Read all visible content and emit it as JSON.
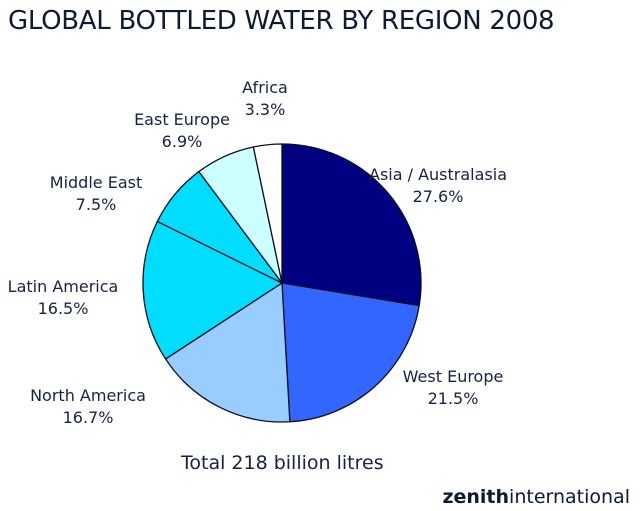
{
  "title": "GLOBAL BOTTLED WATER BY REGION 2008",
  "total_label": "Total 218 billion litres",
  "brand": {
    "bold": "zenith",
    "regular": "international"
  },
  "chart_data": {
    "type": "pie",
    "title": "GLOBAL BOTTLED WATER BY REGION 2008",
    "subtitle": "Total 218 billion litres",
    "unit": "%",
    "categories": [
      "Asia / Australasia",
      "West Europe",
      "North America",
      "Latin America",
      "Middle East",
      "East Europe",
      "Africa"
    ],
    "values": [
      27.6,
      21.5,
      16.7,
      16.5,
      7.5,
      6.9,
      3.3
    ],
    "colors": [
      "#000080",
      "#3366FF",
      "#99CCFF",
      "#00DDFF",
      "#00DDFF",
      "#CCFFFF",
      "#FFFFFF"
    ],
    "start_angle_deg": 0,
    "direction": "clockwise",
    "legend": "none (direct labels)"
  },
  "labels": [
    {
      "name": "Asia / Australasia",
      "pct": "27.6%"
    },
    {
      "name": "West Europe",
      "pct": "21.5%"
    },
    {
      "name": "North America",
      "pct": "16.7%"
    },
    {
      "name": "Latin America",
      "pct": "16.5%"
    },
    {
      "name": "Middle East",
      "pct": "7.5%"
    },
    {
      "name": "East Europe",
      "pct": "6.9%"
    },
    {
      "name": "Africa",
      "pct": "3.3%"
    }
  ]
}
